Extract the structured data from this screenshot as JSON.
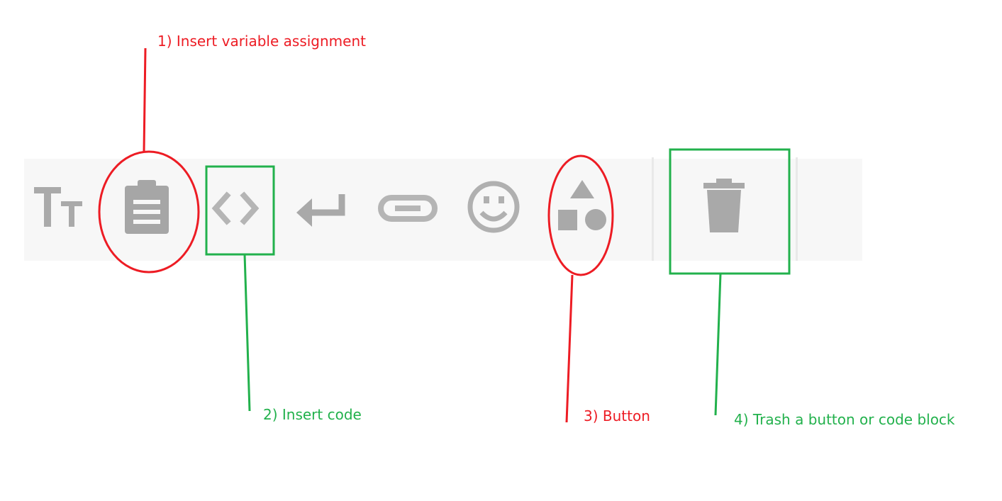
{
  "toolbar": {
    "items": [
      {
        "name": "text-size",
        "icon": "text-size-icon"
      },
      {
        "name": "insert-variable-assignment",
        "icon": "clipboard-icon"
      },
      {
        "name": "insert-code",
        "icon": "code-brackets-icon"
      },
      {
        "name": "line-break",
        "icon": "return-arrow-icon"
      },
      {
        "name": "link",
        "icon": "link-icon"
      },
      {
        "name": "emoji",
        "icon": "smiley-icon"
      },
      {
        "name": "button",
        "icon": "shapes-icon"
      },
      {
        "name": "trash",
        "icon": "trash-icon"
      }
    ],
    "icon_color": "#a9a9a9",
    "background": "#f7f7f7"
  },
  "annotations": {
    "a1": {
      "label": "1) Insert variable assignment",
      "color": "#ed1c24"
    },
    "a2": {
      "label": "2)  Insert code",
      "color": "#22b14c"
    },
    "a3": {
      "label": "3) Button",
      "color": "#ed1c24"
    },
    "a4": {
      "label": "4) Trash a button or code block",
      "color": "#22b14c"
    }
  }
}
